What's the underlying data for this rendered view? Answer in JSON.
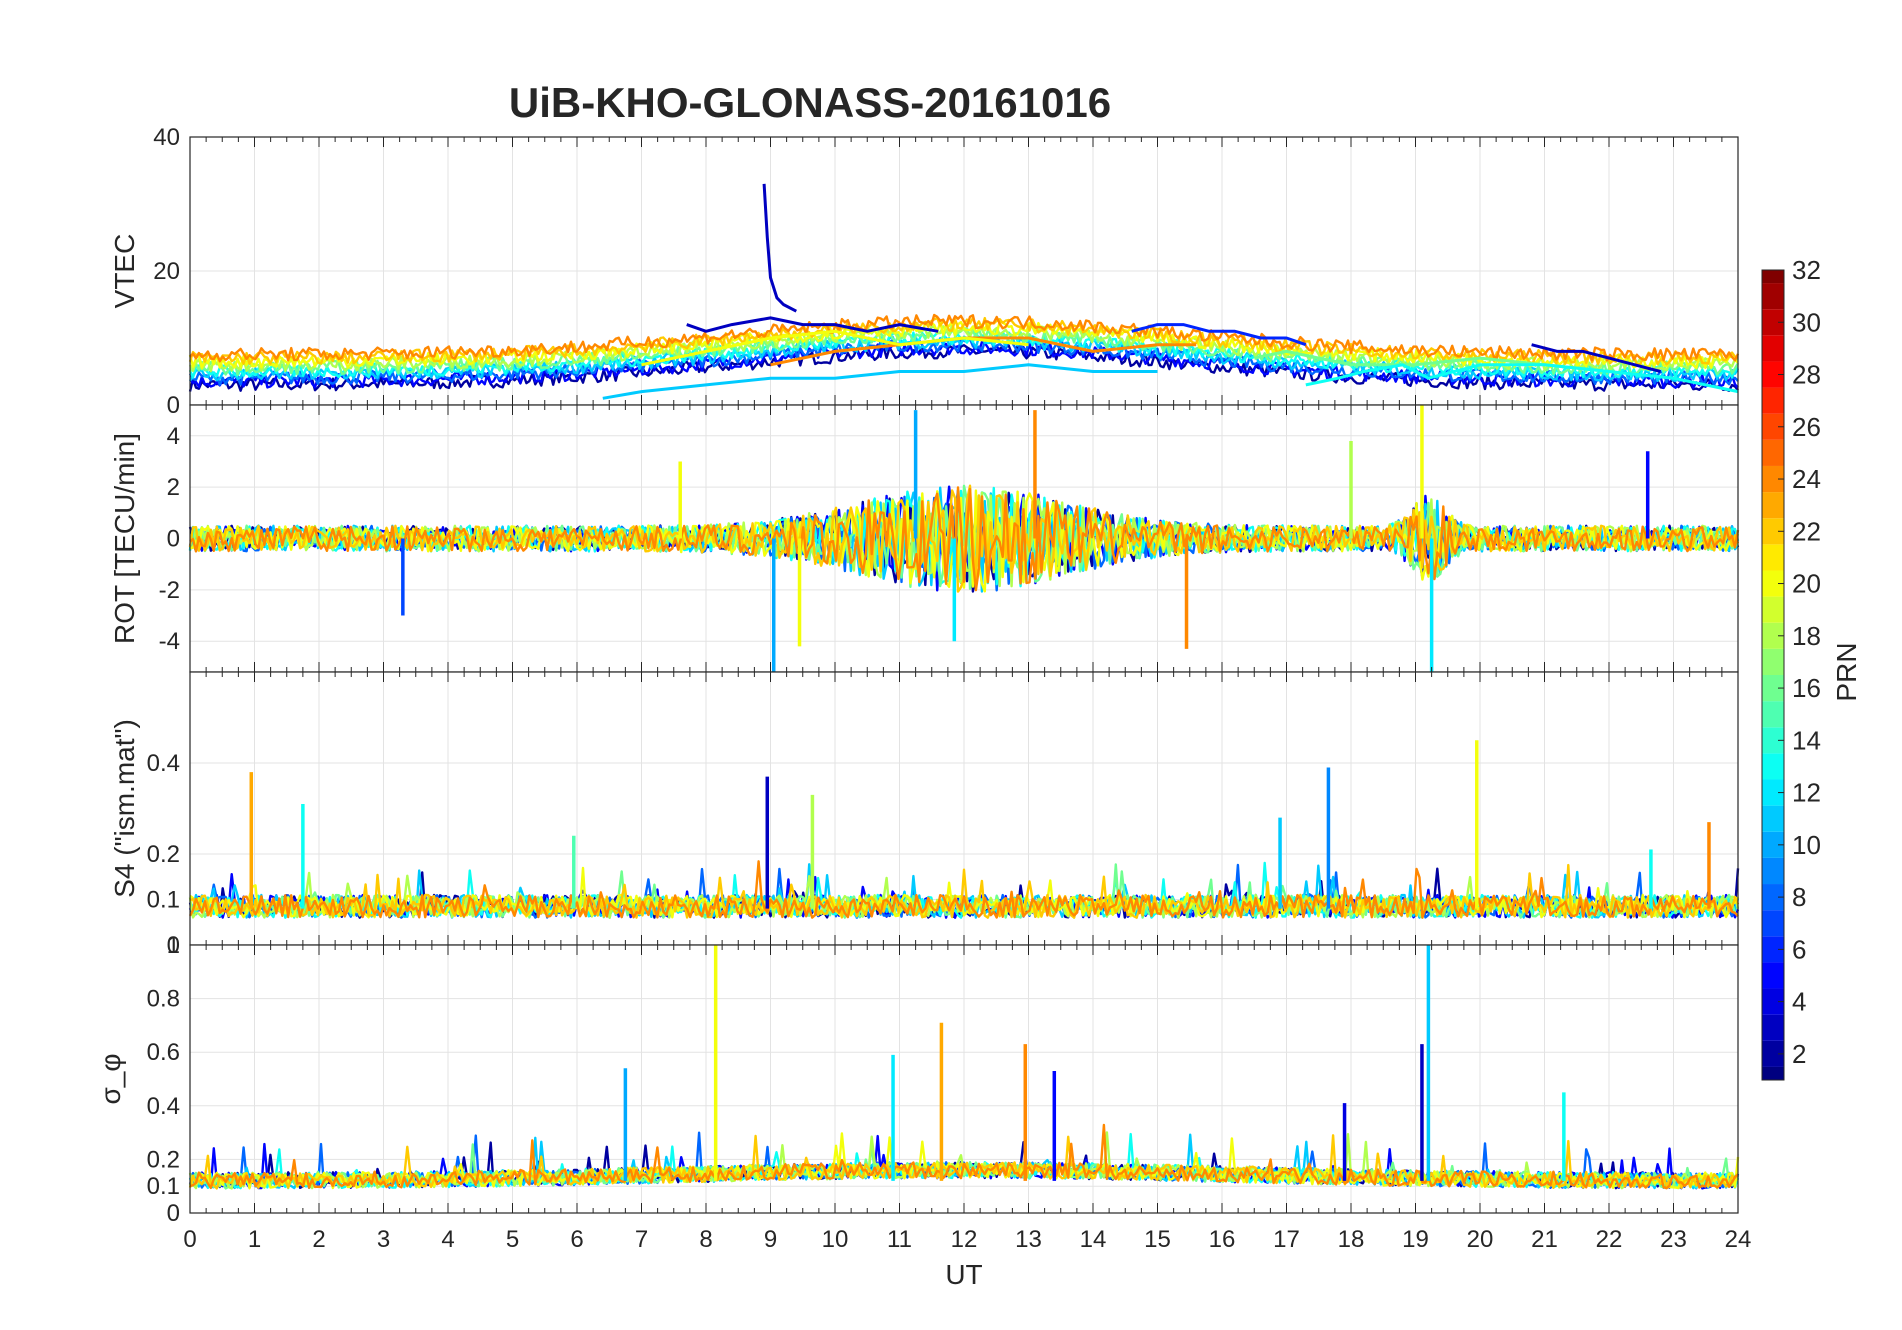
{
  "chart_data": {
    "type": "line",
    "title": "UiB-KHO-GLONASS-20161016",
    "xlabel": "UT",
    "xlim": [
      0,
      24
    ],
    "xticks": [
      "0",
      "1",
      "2",
      "3",
      "4",
      "5",
      "6",
      "7",
      "8",
      "9",
      "10",
      "11",
      "12",
      "13",
      "14",
      "15",
      "16",
      "17",
      "18",
      "19",
      "20",
      "21",
      "22",
      "23",
      "24"
    ],
    "colorbar": {
      "label": "PRN",
      "range": [
        1,
        32
      ],
      "ticks": [
        "2",
        "4",
        "6",
        "8",
        "10",
        "12",
        "14",
        "16",
        "18",
        "20",
        "22",
        "24",
        "26",
        "28",
        "30",
        "32"
      ]
    },
    "panels": [
      {
        "id": "vtec",
        "ylabel": "VTEC",
        "ylim": [
          0,
          40
        ],
        "yticks": [
          "0",
          "20",
          "40"
        ],
        "series": [
          {
            "prn": 3,
            "x": [
              8.9,
              8.95,
              9.0,
              9.1,
              9.2,
              9.4
            ],
            "y": [
              33,
              25,
              19,
              16,
              15,
              14
            ]
          },
          {
            "prn": 3,
            "x": [
              7.7,
              8.0,
              8.4,
              9.0,
              9.5,
              10.0,
              10.5,
              11.0,
              11.6
            ],
            "y": [
              12,
              11,
              12,
              13,
              12,
              12,
              11,
              12,
              11
            ]
          },
          {
            "prn": 6,
            "x": [
              14.6,
              15.0,
              15.4,
              15.8,
              16.2,
              16.6,
              17.0,
              17.3
            ],
            "y": [
              11,
              12,
              12,
              11,
              11,
              10,
              10,
              9
            ]
          },
          {
            "prn": 3,
            "x": [
              20.8,
              21.2,
              21.6,
              22.0,
              22.4,
              22.8
            ],
            "y": [
              9,
              8,
              8,
              7,
              6,
              5
            ]
          },
          {
            "prn": 11,
            "x": [
              6.4,
              7.0,
              8.0,
              9.0,
              10.0,
              11.0,
              12.0,
              13.0,
              14.0,
              15.0
            ],
            "y": [
              1,
              2,
              3,
              4,
              4,
              5,
              5,
              6,
              5,
              5
            ]
          },
          {
            "prn": 24,
            "x": [
              9.0,
              10.0,
              11.0,
              12.0,
              13.0,
              14.0,
              15.0,
              15.6
            ],
            "y": [
              6,
              8,
              9,
              10,
              10,
              8,
              9,
              9
            ]
          },
          {
            "prn": 20,
            "x": [
              7.0,
              8.0,
              9.0,
              10.0,
              11.0,
              12.0,
              13.0
            ],
            "y": [
              6,
              8,
              10,
              11,
              9,
              10,
              9
            ]
          },
          {
            "prn": 16,
            "x": [
              16.5,
              17.0,
              17.5,
              18.0,
              19.0,
              20.0,
              21.0,
              22.0
            ],
            "y": [
              7,
              8,
              7,
              6,
              6,
              7,
              6,
              5
            ]
          },
          {
            "prn": 13,
            "x": [
              17.3,
              17.8,
              18.2,
              18.8,
              19.2,
              20.0,
              21.0,
              22.0,
              23.0,
              24.0
            ],
            "y": [
              3,
              4,
              5,
              6,
              4,
              6,
              6,
              5,
              4,
              2
            ]
          }
        ]
      },
      {
        "id": "rot",
        "ylabel": "ROT [TECU/min]",
        "ylim": [
          -5.2,
          5.2
        ],
        "yticks": [
          "-4",
          "-2",
          "0",
          "2",
          "4"
        ],
        "spikes": [
          {
            "prn": 10,
            "x": 9.05,
            "y": -5.2
          },
          {
            "prn": 10,
            "x": 11.25,
            "y": 5.0
          },
          {
            "prn": 12,
            "x": 11.85,
            "y": -4.0
          },
          {
            "prn": 24,
            "x": 13.1,
            "y": 5.0
          },
          {
            "prn": 24,
            "x": 15.45,
            "y": -4.3
          },
          {
            "prn": 20,
            "x": 19.1,
            "y": 5.2
          },
          {
            "prn": 12,
            "x": 19.25,
            "y": -5.2
          },
          {
            "prn": 7,
            "x": 3.3,
            "y": -3.0
          },
          {
            "prn": 20,
            "x": 7.6,
            "y": 3.0
          },
          {
            "prn": 5,
            "x": 22.6,
            "y": 3.4
          },
          {
            "prn": 18,
            "x": 18.0,
            "y": 3.8
          },
          {
            "prn": 20,
            "x": 9.45,
            "y": -4.2
          }
        ]
      },
      {
        "id": "s4",
        "ylabel": "S4 (\"ism.mat\")",
        "ylim": [
          0,
          0.6
        ],
        "yticks": [
          "0",
          "0.1",
          "0.2",
          "0.4"
        ],
        "spikes": [
          {
            "prn": 23,
            "x": 0.95,
            "y": 0.38
          },
          {
            "prn": 13,
            "x": 1.75,
            "y": 0.31
          },
          {
            "prn": 3,
            "x": 8.95,
            "y": 0.37
          },
          {
            "prn": 18,
            "x": 9.65,
            "y": 0.33
          },
          {
            "prn": 9,
            "x": 17.65,
            "y": 0.39
          },
          {
            "prn": 11,
            "x": 16.9,
            "y": 0.28
          },
          {
            "prn": 20,
            "x": 19.95,
            "y": 0.45
          },
          {
            "prn": 24,
            "x": 23.55,
            "y": 0.27
          },
          {
            "prn": 15,
            "x": 5.95,
            "y": 0.24
          },
          {
            "prn": 13,
            "x": 22.65,
            "y": 0.21
          }
        ]
      },
      {
        "id": "sigma",
        "ylabel": "σ_φ",
        "ylim": [
          0,
          1
        ],
        "yticks": [
          "0",
          "0.1",
          "0.2",
          "0.4",
          "0.6",
          "0.8",
          "1"
        ],
        "spikes": [
          {
            "prn": 20,
            "x": 8.15,
            "y": 1.0
          },
          {
            "prn": 10,
            "x": 6.75,
            "y": 0.54
          },
          {
            "prn": 12,
            "x": 10.9,
            "y": 0.59
          },
          {
            "prn": 23,
            "x": 11.65,
            "y": 0.71
          },
          {
            "prn": 24,
            "x": 12.95,
            "y": 0.63
          },
          {
            "prn": 5,
            "x": 13.4,
            "y": 0.53
          },
          {
            "prn": 11,
            "x": 19.2,
            "y": 1.0
          },
          {
            "prn": 3,
            "x": 19.1,
            "y": 0.63
          },
          {
            "prn": 13,
            "x": 21.3,
            "y": 0.45
          },
          {
            "prn": 4,
            "x": 17.9,
            "y": 0.41
          }
        ]
      }
    ]
  }
}
